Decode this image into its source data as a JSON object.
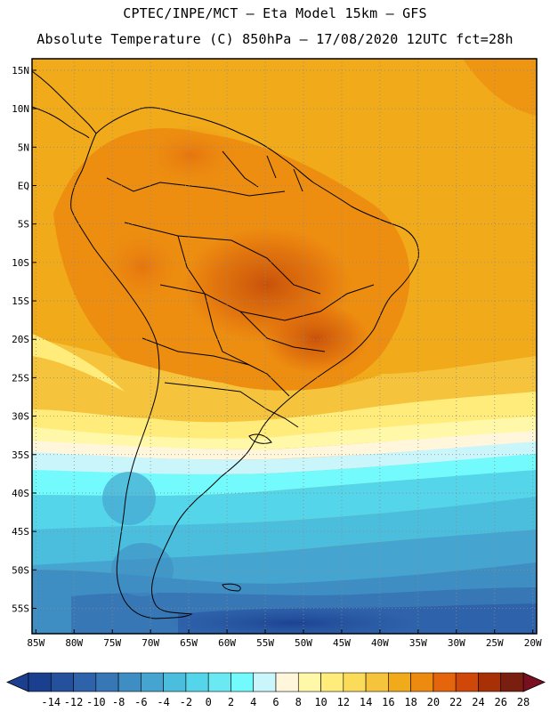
{
  "header": {
    "title_line1": "CPTEC/INPE/MCT –  Eta Model 15km – GFS",
    "title_line2": "Absolute Temperature (C) 850hPa – 17/08/2020 12UTC fct=28h"
  },
  "map": {
    "lat_labels": [
      "15N",
      "10N",
      "5N",
      "EQ",
      "5S",
      "10S",
      "15S",
      "20S",
      "25S",
      "30S",
      "35S",
      "40S",
      "45S",
      "50S",
      "55S"
    ],
    "lat_values": [
      15,
      10,
      5,
      0,
      -5,
      -10,
      -15,
      -20,
      -25,
      -30,
      -35,
      -40,
      -45,
      -50,
      -55
    ],
    "lon_labels": [
      "85W",
      "80W",
      "75W",
      "70W",
      "65W",
      "60W",
      "55W",
      "50W",
      "45W",
      "40W",
      "35W",
      "30W",
      "25W",
      "20W"
    ],
    "lon_values": [
      -85,
      -80,
      -75,
      -70,
      -65,
      -60,
      -55,
      -50,
      -45,
      -40,
      -35,
      -30,
      -25,
      -20
    ]
  },
  "colorbar": {
    "labels": [
      "-14",
      "-12",
      "-10",
      "-8",
      "-6",
      "-4",
      "-2",
      "0",
      "2",
      "4",
      "6",
      "8",
      "10",
      "12",
      "14",
      "16",
      "18",
      "20",
      "22",
      "24",
      "26",
      "28"
    ],
    "colors": [
      "#1b3f8f",
      "#24509c",
      "#2e62aa",
      "#3777b6",
      "#3f8ec3",
      "#45a5d0",
      "#4cbedd",
      "#55d5e9",
      "#6ae9f3",
      "#72fafc",
      "#c9f5fb",
      "#fff6dc",
      "#fff8a8",
      "#ffec7a",
      "#fbdc5a",
      "#f6c43c",
      "#f1aa1a",
      "#ec8b10",
      "#e4650c",
      "#cf480a",
      "#a83006",
      "#7a1f10"
    ],
    "low_color": "#1b3f8f",
    "high_color": "#7a0f1f"
  }
}
